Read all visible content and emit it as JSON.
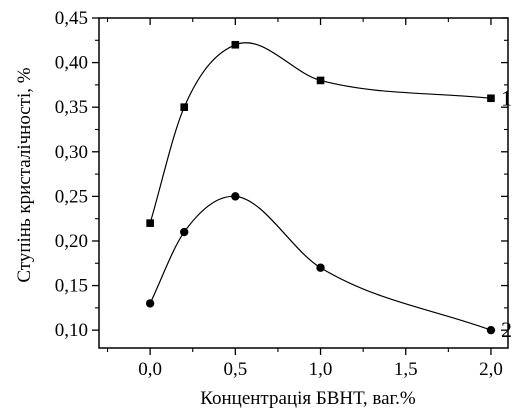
{
  "chart_data": {
    "type": "line",
    "xlabel": "Концентрація БВНТ, ваг.%",
    "ylabel": "Ступінь кристалічності, %",
    "xlim": [
      -0.3,
      2.1
    ],
    "ylim": [
      0.08,
      0.45
    ],
    "x_ticks": [
      0.0,
      0.5,
      1.0,
      1.5,
      2.0
    ],
    "x_tick_labels": [
      "0,0",
      "0,5",
      "1,0",
      "1,5",
      "2,0"
    ],
    "y_ticks": [
      0.1,
      0.15,
      0.2,
      0.25,
      0.3,
      0.35,
      0.4,
      0.45
    ],
    "y_tick_labels": [
      "0,10",
      "0,15",
      "0,20",
      "0,25",
      "0,30",
      "0,35",
      "0,40",
      "0,45"
    ],
    "grid": false,
    "series": [
      {
        "name": "1",
        "marker": "square",
        "x": [
          0.0,
          0.2,
          0.5,
          1.0,
          2.0
        ],
        "y": [
          0.22,
          0.35,
          0.42,
          0.38,
          0.36
        ]
      },
      {
        "name": "2",
        "marker": "circle",
        "x": [
          0.0,
          0.2,
          0.5,
          1.0,
          2.0
        ],
        "y": [
          0.13,
          0.21,
          0.25,
          0.17,
          0.1
        ]
      }
    ]
  }
}
